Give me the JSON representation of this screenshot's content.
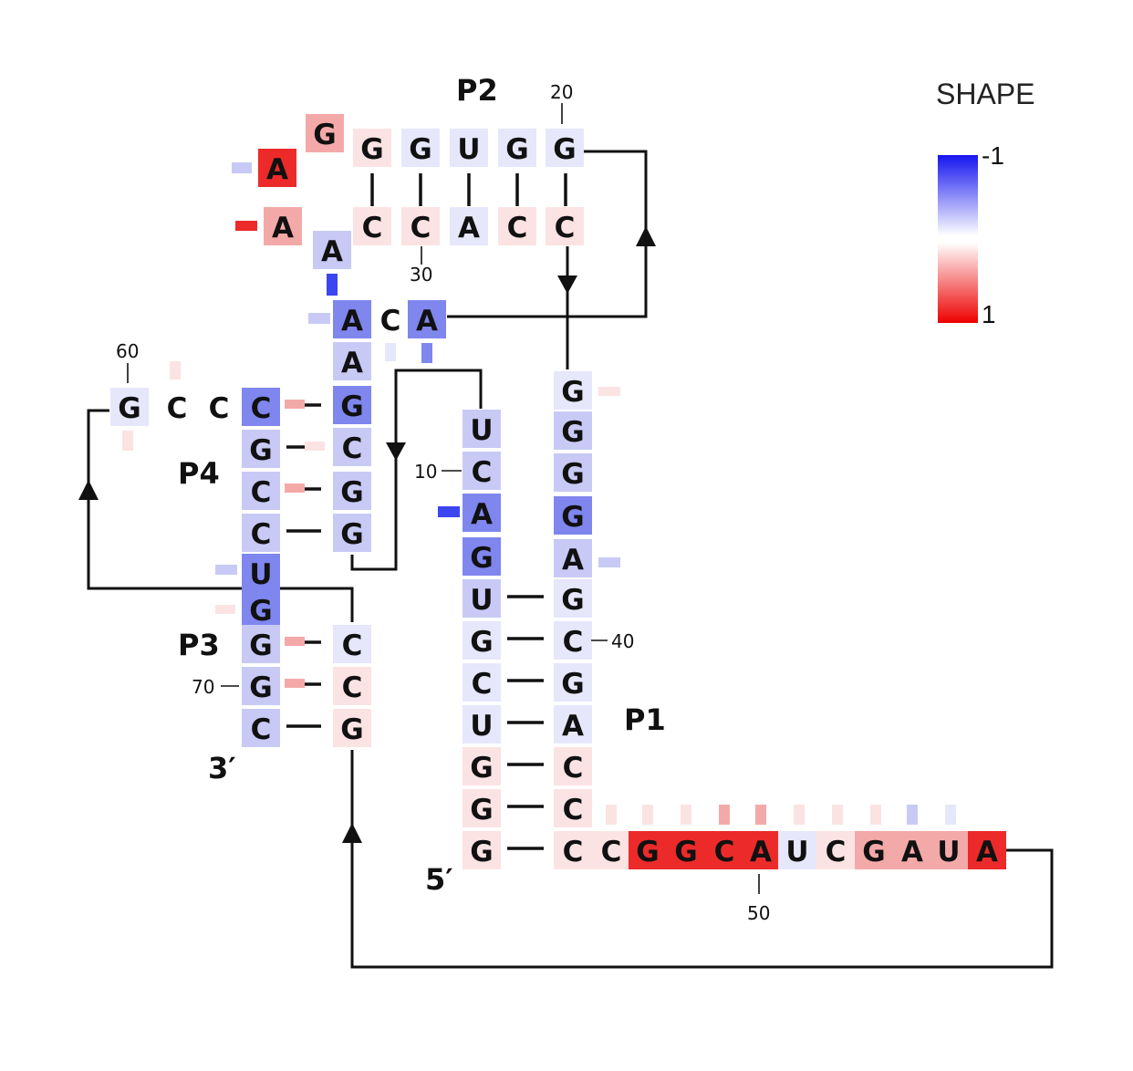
{
  "diagram": {
    "helix_labels": {
      "p1": "P1",
      "p2": "P2",
      "p3": "P3",
      "p4": "P4"
    },
    "end_labels": {
      "five_prime": "5′",
      "three_prime": "3′"
    },
    "position_markers": [
      "10",
      "20",
      "30",
      "40",
      "50",
      "60",
      "70"
    ],
    "colors": {
      "strong_blue": "#3b46f2",
      "medium_blue": "#7f86ee",
      "light_blue": "#c8caf5",
      "pale_blue": "#e6e7fb",
      "pale_red": "#fbe3e3",
      "light_red": "#f4a9a9",
      "strong_red": "#ec2a2a"
    },
    "nucleotides": {
      "p1_five": [
        "G",
        "G",
        "G",
        "U",
        "C",
        "G",
        "U",
        "G",
        "A",
        "C",
        "U"
      ],
      "p1_three": [
        "G",
        "G",
        "G",
        "G",
        "A",
        "G",
        "C",
        "G",
        "A",
        "C",
        "C",
        "C"
      ],
      "tail": [
        "C",
        "G",
        "G",
        "C",
        "A",
        "U",
        "C",
        "G",
        "A",
        "U",
        "A"
      ],
      "p2_top": [
        "G",
        "G",
        "U",
        "G",
        "G"
      ],
      "p2_bottom": [
        "C",
        "C",
        "A",
        "C",
        "C"
      ],
      "l2": [
        "G",
        "A",
        "A",
        "A"
      ],
      "j23": [
        "A",
        "C",
        "A"
      ],
      "p4_right": [
        "A",
        "G",
        "C",
        "G",
        "G"
      ],
      "p4_top": [
        "G",
        "C",
        "C",
        "C"
      ],
      "p3_left": [
        "G",
        "C",
        "C",
        "U",
        "G",
        "G",
        "G",
        "C"
      ],
      "p3_right": [
        "C",
        "C",
        "G"
      ]
    }
  },
  "legend": {
    "title": "SHAPE",
    "max_label": "-1",
    "min_label": "1",
    "gradient": [
      "#1515f0",
      "#ffffff",
      "#ee0000"
    ]
  }
}
